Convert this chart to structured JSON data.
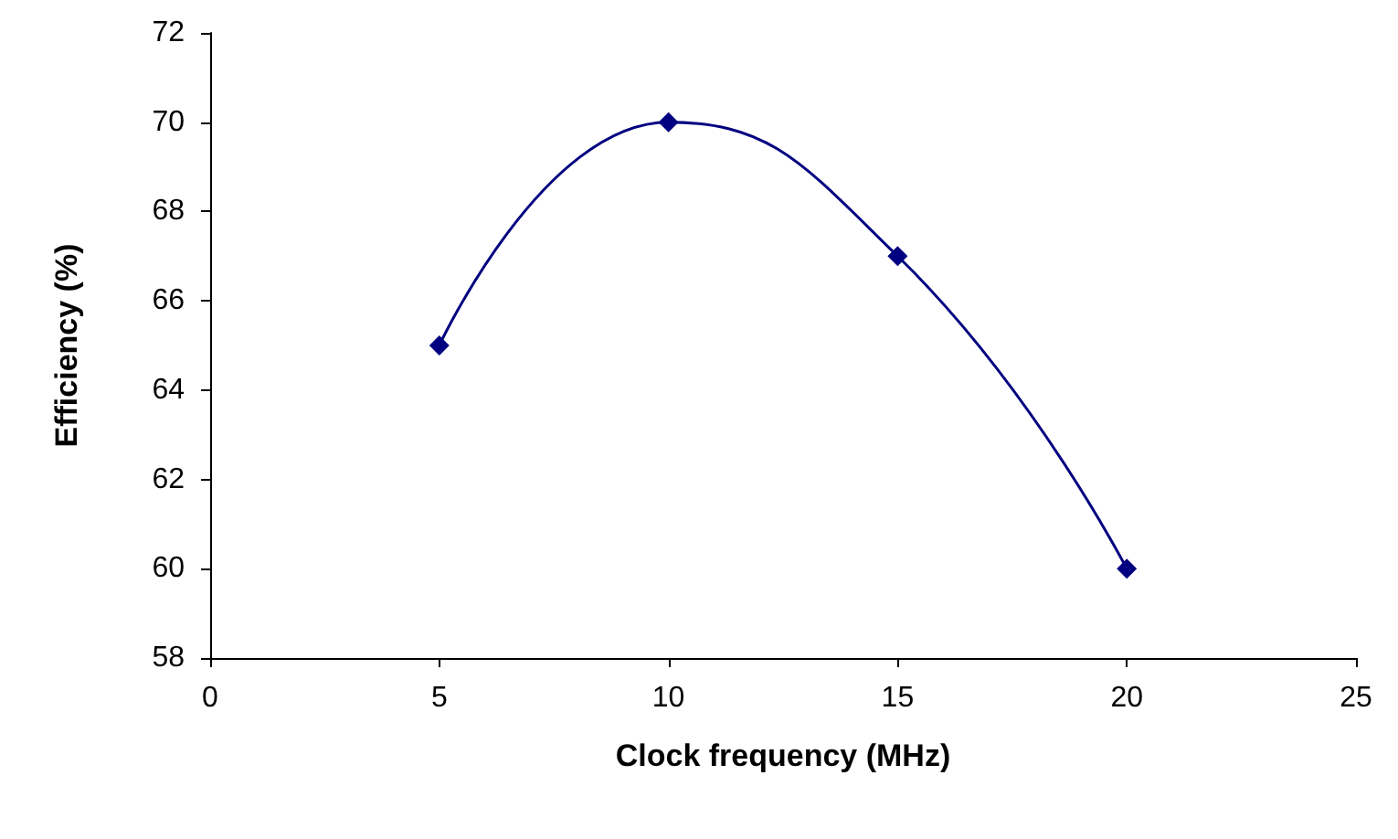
{
  "chart_data": {
    "type": "line",
    "xlabel": "Clock frequency (MHz)",
    "ylabel": "Efficiency (%)",
    "x": [
      5,
      10,
      15,
      20
    ],
    "series": [
      {
        "color": "#000080",
        "values": [
          65,
          70,
          67,
          60
        ]
      }
    ],
    "xlim": [
      0,
      25
    ],
    "xticks": [
      0,
      5,
      10,
      15,
      20,
      25
    ],
    "ylim": [
      58,
      72
    ],
    "yticks": [
      58,
      60,
      62,
      64,
      66,
      68,
      70,
      72
    ],
    "grid": false,
    "marker": "diamond",
    "line_style": "solid"
  }
}
